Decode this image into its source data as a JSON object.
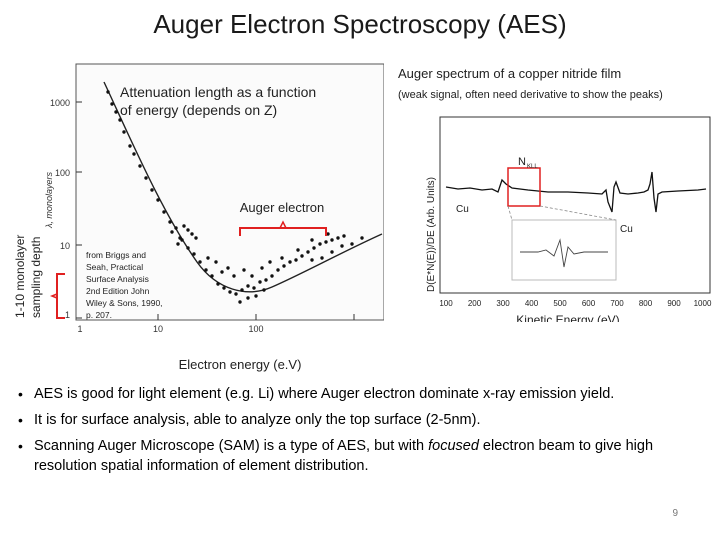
{
  "slide": {
    "title": "Auger Electron Spectroscopy (AES)",
    "page_number": "9"
  },
  "left_figure": {
    "caption_line1": "Attenuation length as a function",
    "caption_line2": "of energy (depends on Z)",
    "y_axis_title": "λ, monolayers",
    "y_ticks": [
      "1000",
      "100",
      "10",
      "1"
    ],
    "x_ticks": [
      "1",
      "10",
      "100"
    ],
    "x_axis_label": "Electron energy (e.V)",
    "auger_label": "Auger electron",
    "sampling_label_line1": "1-10 monolayer",
    "sampling_label_line2": "sampling depth",
    "source_lines": [
      "from Briggs and",
      "Seah, Practical",
      "Surface Analysis",
      "2nd Edition John",
      "Wiley & Sons, 1990,",
      "p. 207."
    ]
  },
  "right_figure": {
    "title_line1": "Auger spectrum of a copper nitride film",
    "title_line2": "(weak signal, often need derivative to show the peaks)",
    "y_axis_label": "D(E*N(E))/DE (Arb. Units)",
    "x_axis_label": "Kinetic Energy (eV)",
    "x_ticks": [
      "100",
      "200",
      "300",
      "400",
      "500",
      "600",
      "700",
      "800",
      "900",
      "1000"
    ],
    "peak_labels": {
      "nitrogen": "N",
      "nitrogen_sub": "KLL",
      "cu_low": "Cu",
      "cu_high": "Cu"
    }
  },
  "bullets": {
    "b1": "AES is good for light element (e.g. Li) where Auger electron dominate x-ray emission yield.",
    "b2": "It is for surface analysis, able to analyze only the top surface (2-5nm).",
    "b3_before": "Scanning Auger Microscope (SAM) is a type of AES, but with ",
    "b3_em": "focused",
    "b3_after": " electron beam to give high resolution spatial information of element distribution."
  }
}
